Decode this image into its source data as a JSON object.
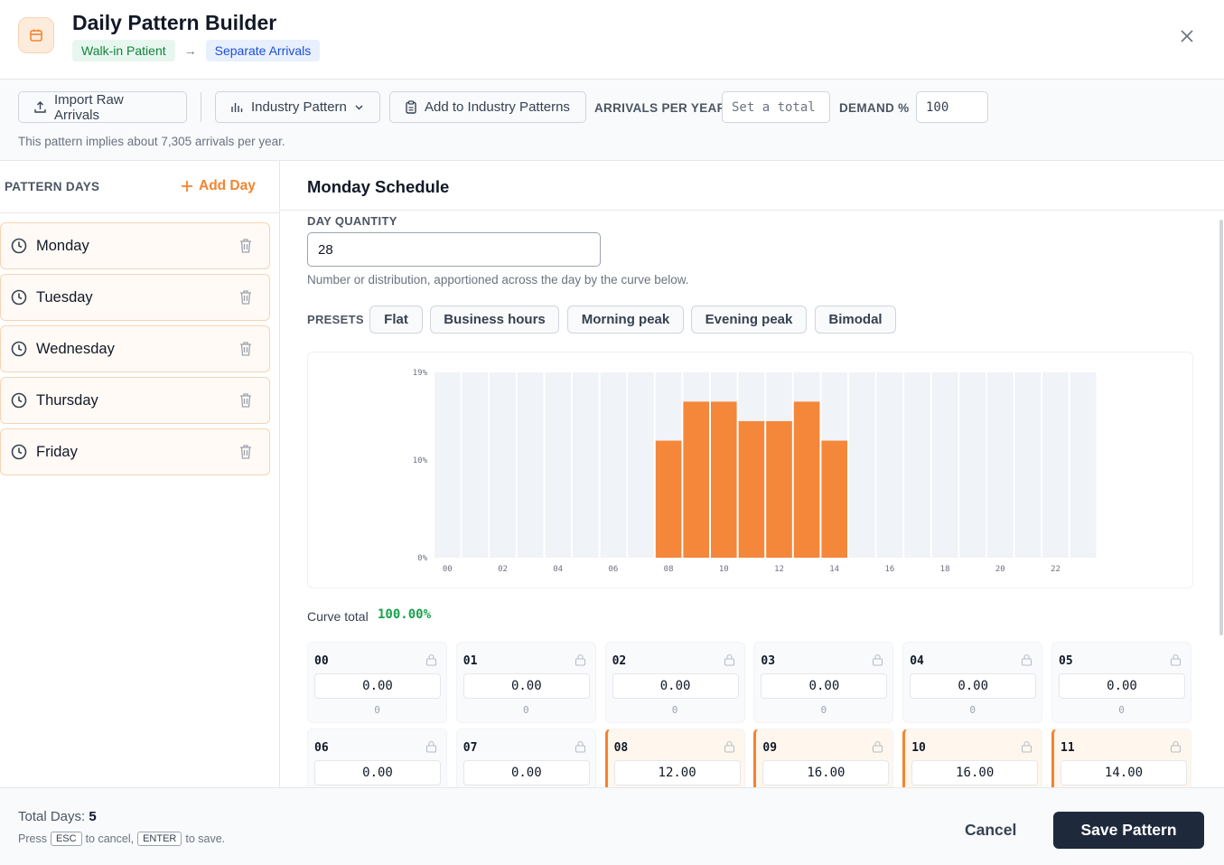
{
  "header": {
    "title": "Daily Pattern Builder",
    "breadcrumb_from": "Walk-in Patient",
    "breadcrumb_arrow": "→",
    "breadcrumb_to": "Separate Arrivals"
  },
  "toolbar": {
    "import_label": "Import Raw Arrivals",
    "industry_label": "Industry Pattern",
    "add_industry_label": "Add to Industry Patterns",
    "arrivals_label": "ARRIVALS PER YEAR",
    "arrivals_placeholder": "Set a total",
    "arrivals_value": "",
    "demand_label": "DEMAND %",
    "demand_value": "100",
    "implied_text": "This pattern implies about 7,305 arrivals per year."
  },
  "sidebar": {
    "title": "PATTERN DAYS",
    "add_label": "Add Day",
    "days": [
      {
        "label": "Monday"
      },
      {
        "label": "Tuesday"
      },
      {
        "label": "Wednesday"
      },
      {
        "label": "Thursday"
      },
      {
        "label": "Friday"
      }
    ]
  },
  "main": {
    "title": "Monday Schedule",
    "day_quantity_label": "DAY QUANTITY",
    "day_quantity_value": "28",
    "hint": "Number or distribution, apportioned across the day by the curve below.",
    "presets_label": "PRESETS",
    "presets": [
      "Flat",
      "Business hours",
      "Morning peak",
      "Evening peak",
      "Bimodal"
    ],
    "curve_total_label": "Curve total",
    "curve_total_value": "100.00%"
  },
  "chart_data": {
    "type": "bar",
    "categories": [
      "00",
      "01",
      "02",
      "03",
      "04",
      "05",
      "06",
      "07",
      "08",
      "09",
      "10",
      "11",
      "12",
      "13",
      "14",
      "15",
      "16",
      "17",
      "18",
      "19",
      "20",
      "21",
      "22",
      "23"
    ],
    "values": [
      0,
      0,
      0,
      0,
      0,
      0,
      0,
      0,
      12,
      16,
      16,
      14,
      14,
      16,
      12,
      0,
      0,
      0,
      0,
      0,
      0,
      0,
      0,
      0
    ],
    "x_tick_labels": [
      "00",
      "02",
      "04",
      "06",
      "08",
      "10",
      "12",
      "14",
      "16",
      "18",
      "20",
      "22"
    ],
    "y_tick_labels": [
      "0%",
      "10%",
      "19%"
    ],
    "ylim": [
      0,
      19
    ],
    "grid": false,
    "colors": {
      "bar": "#f4873a",
      "background_bar": "#f0f3f7"
    }
  },
  "hour_cells": [
    {
      "hour": "00",
      "value": "0.00",
      "count": "0",
      "active": false
    },
    {
      "hour": "01",
      "value": "0.00",
      "count": "0",
      "active": false
    },
    {
      "hour": "02",
      "value": "0.00",
      "count": "0",
      "active": false
    },
    {
      "hour": "03",
      "value": "0.00",
      "count": "0",
      "active": false
    },
    {
      "hour": "04",
      "value": "0.00",
      "count": "0",
      "active": false
    },
    {
      "hour": "05",
      "value": "0.00",
      "count": "0",
      "active": false
    },
    {
      "hour": "06",
      "value": "0.00",
      "active": false
    },
    {
      "hour": "07",
      "value": "0.00",
      "active": false
    },
    {
      "hour": "08",
      "value": "12.00",
      "active": true
    },
    {
      "hour": "09",
      "value": "16.00",
      "active": true
    },
    {
      "hour": "10",
      "value": "16.00",
      "active": true
    },
    {
      "hour": "11",
      "value": "14.00",
      "active": true
    }
  ],
  "footer": {
    "total_days_label": "Total Days:",
    "total_days_value": "5",
    "press_text": "Press",
    "esc_key": "ESC",
    "cancel_text": "to cancel,",
    "enter_key": "ENTER",
    "save_text": "to save.",
    "cancel_label": "Cancel",
    "save_label": "Save Pattern"
  },
  "colors": {
    "accent": "#f4842f",
    "primary_button": "#1e293b",
    "success": "#16a34a"
  }
}
